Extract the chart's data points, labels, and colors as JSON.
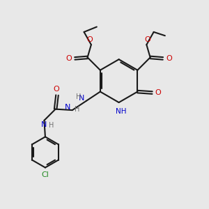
{
  "bg_color": "#e8e8e8",
  "bond_color": "#1a1a1a",
  "oxygen_color": "#cc0000",
  "nitrogen_color": "#0000cc",
  "chlorine_color": "#228B22",
  "h_color": "#707070",
  "linewidth": 1.5,
  "figsize": [
    3.0,
    3.0
  ],
  "dpi": 100,
  "xlim": [
    0,
    10
  ],
  "ylim": [
    0,
    10
  ]
}
